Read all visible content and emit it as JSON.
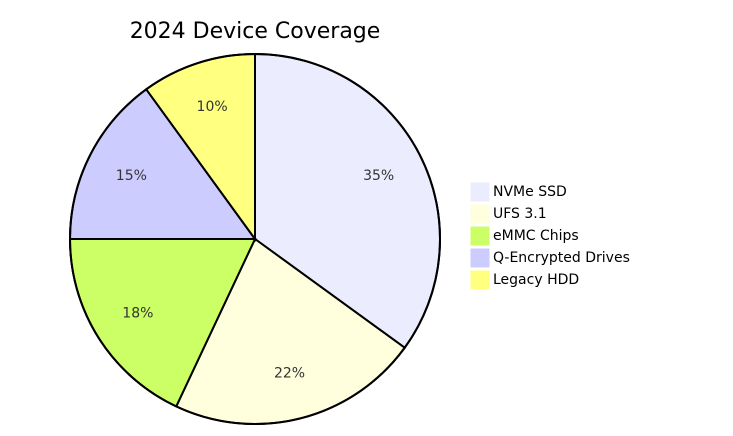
{
  "chart_data": {
    "type": "pie",
    "title": "2024 Device Coverage",
    "categories": [
      "NVMe SSD",
      "UFS 3.1",
      "eMMC Chips",
      "Q-Encrypted Drives",
      "Legacy HDD"
    ],
    "values": [
      35,
      22,
      18,
      15,
      10
    ],
    "value_labels": [
      "35%",
      "22%",
      "18%",
      "15%",
      "10%"
    ],
    "colors": [
      "#ececff",
      "#ffffde",
      "#ccff66",
      "#ccccff",
      "#ffff80"
    ],
    "legend": "right"
  }
}
